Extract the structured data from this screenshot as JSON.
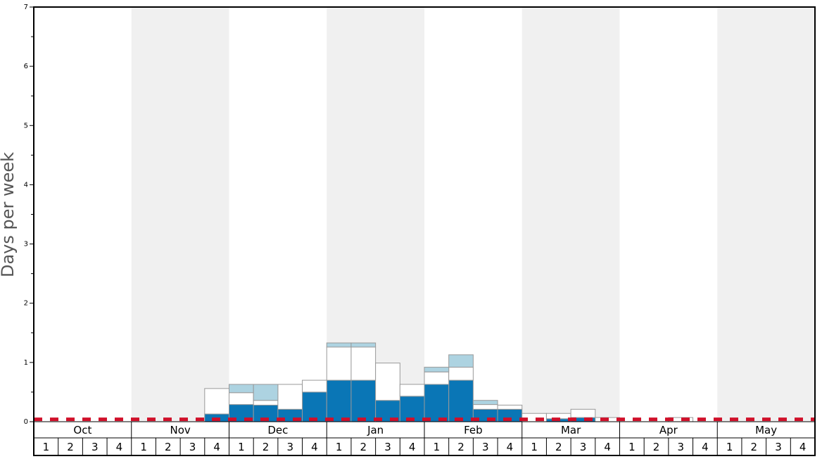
{
  "chart_data": {
    "type": "bar",
    "stacked": true,
    "y_label": "Days per week",
    "months": [
      "Oct",
      "Nov",
      "Dec",
      "Jan",
      "Feb",
      "Mar",
      "Apr",
      "May"
    ],
    "weeks": [
      "1",
      "2",
      "3",
      "4"
    ],
    "shaded_months": [
      1,
      3,
      5,
      7
    ],
    "shade_color": "#f0f0f0",
    "series": [
      {
        "color": "#0a76b6",
        "values": [
          0,
          0,
          0,
          0,
          0,
          0,
          0,
          0.13,
          0.29,
          0.28,
          0.21,
          0.5,
          0.7,
          0.7,
          0.36,
          0.43,
          0.63,
          0.7,
          0.21,
          0.21,
          0,
          0.05,
          0.07,
          0,
          0,
          0,
          0,
          0,
          0,
          0,
          0,
          0
        ]
      },
      {
        "color": "#ffffff",
        "values": [
          0,
          0,
          0,
          0,
          0,
          0,
          0,
          0.43,
          0.2,
          0.08,
          0.42,
          0.2,
          0.56,
          0.56,
          0.63,
          0.2,
          0.21,
          0.22,
          0.08,
          0.07,
          0.14,
          0.09,
          0.14,
          0.07,
          0,
          0,
          0.07,
          0,
          0,
          0,
          0,
          0
        ]
      },
      {
        "color": "#add3e1",
        "values": [
          0,
          0,
          0,
          0,
          0,
          0,
          0,
          0,
          0.14,
          0.27,
          0,
          0,
          0.07,
          0.07,
          0,
          0,
          0.08,
          0.21,
          0.07,
          0,
          0,
          0,
          0,
          0,
          0,
          0,
          0,
          0,
          0,
          0,
          0,
          0
        ]
      }
    ],
    "reference_line": 0.04,
    "reference_color": "#d0102a",
    "ylim": [
      0,
      7
    ],
    "yticks": [
      0,
      1,
      2,
      3,
      4,
      5,
      6,
      7
    ],
    "minor_yticks": [
      0.5,
      1.5,
      2.5,
      3.5,
      4.5,
      5.5,
      6.5
    ]
  }
}
